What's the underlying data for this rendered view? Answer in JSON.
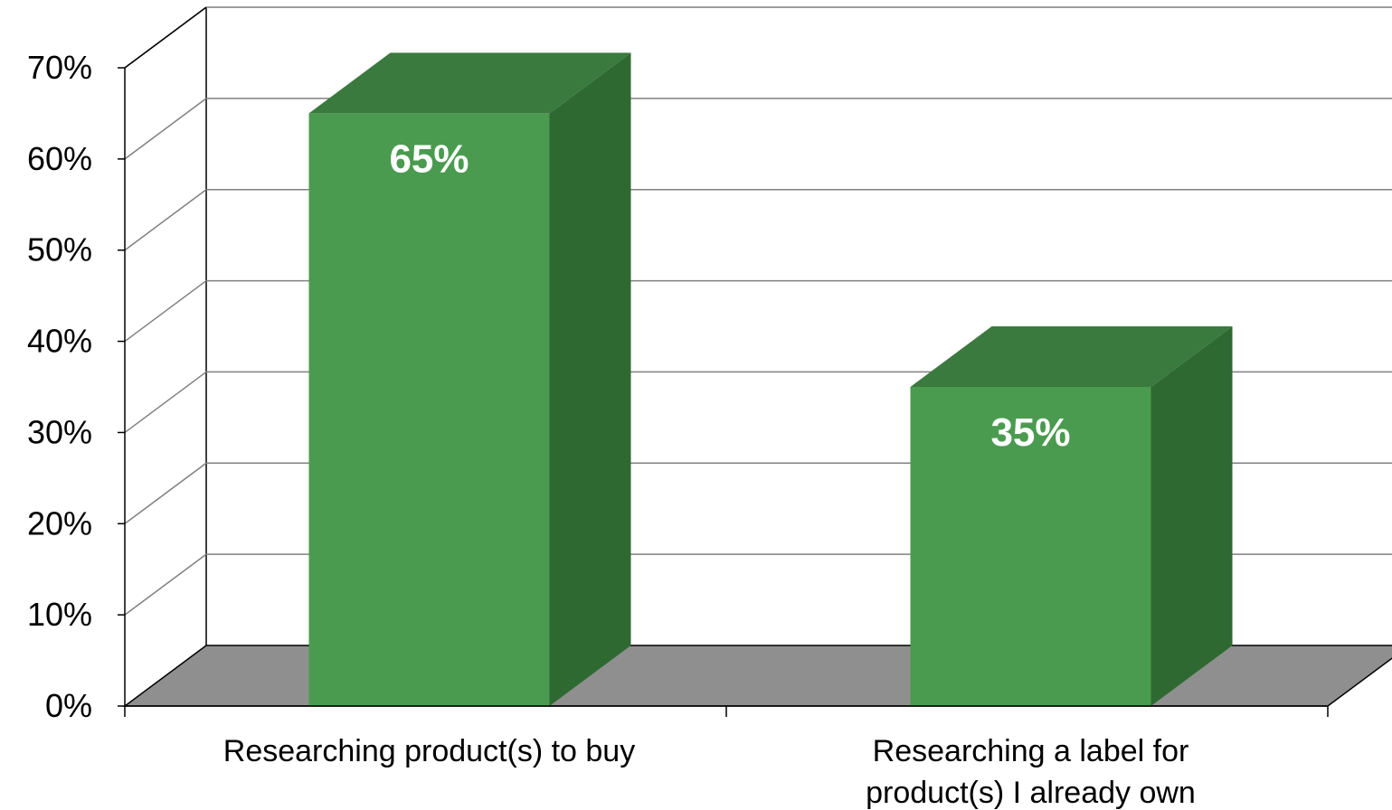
{
  "chart_data": {
    "type": "bar",
    "categories": [
      "Researching product(s) to buy",
      "Researching a label for product(s) I already own"
    ],
    "category_lines": [
      [
        "Researching product(s) to buy"
      ],
      [
        "Researching a label for",
        "product(s) I already own"
      ]
    ],
    "values": [
      0.65,
      0.35
    ],
    "data_labels": [
      "65%",
      "35%"
    ],
    "yticks": [
      0,
      0.1,
      0.2,
      0.3,
      0.4,
      0.5,
      0.6,
      0.7
    ],
    "ytick_labels": [
      "0%",
      "10%",
      "20%",
      "30%",
      "40%",
      "50%",
      "60%",
      "70%"
    ],
    "ylim": [
      0,
      0.7
    ],
    "grid": true,
    "style": "3d",
    "colors": {
      "bar_front": "#4a9b4f",
      "bar_top": "#3a7a3e",
      "bar_side": "#2f6932",
      "floor": "#8f8f8f",
      "gridline": "#808080"
    }
  }
}
